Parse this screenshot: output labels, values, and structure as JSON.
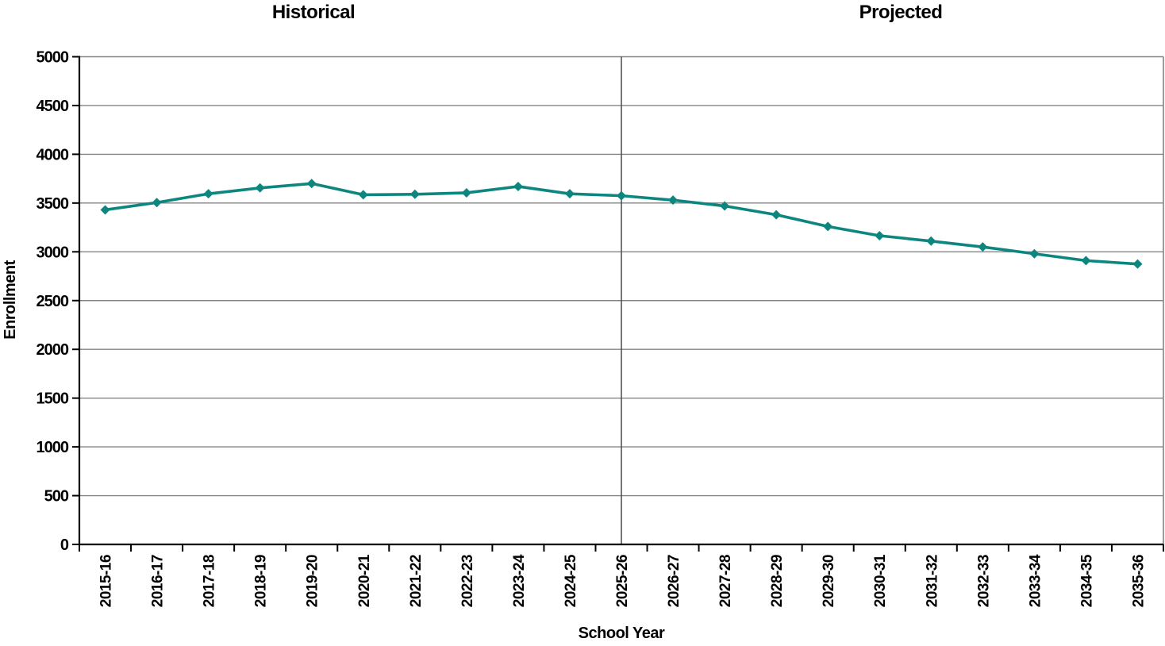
{
  "section_headers": {
    "historical": "Historical",
    "projected": "Projected"
  },
  "chart_data": {
    "type": "line",
    "title": "",
    "categories": [
      "2015-16",
      "2016-17",
      "2017-18",
      "2018-19",
      "2019-20",
      "2020-21",
      "2021-22",
      "2022-23",
      "2023-24",
      "2024-25",
      "2025-26",
      "2026-27",
      "2027-28",
      "2028-29",
      "2029-30",
      "2030-31",
      "2031-32",
      "2032-33",
      "2033-34",
      "2034-35",
      "2035-36"
    ],
    "series": [
      {
        "name": "Enrollment",
        "values": [
          3430,
          3505,
          3595,
          3655,
          3700,
          3585,
          3590,
          3605,
          3670,
          3595,
          3575,
          3530,
          3470,
          3380,
          3260,
          3165,
          3110,
          3050,
          2980,
          2910,
          2875
        ]
      }
    ],
    "xlabel": "School Year",
    "ylabel": "Enrollment",
    "ylim": [
      0,
      5000
    ],
    "ytick_step": 500,
    "divider_after_index": 10,
    "divider_at_category": "2025-26",
    "legend_position": "none",
    "grid": true,
    "marker": "diamond",
    "colors": {
      "series": "#0E8680",
      "gridline": "#848484",
      "axis": "#000000",
      "divider": "#4A4A4A",
      "text": "#000000",
      "background": "#FFFFFF"
    }
  }
}
